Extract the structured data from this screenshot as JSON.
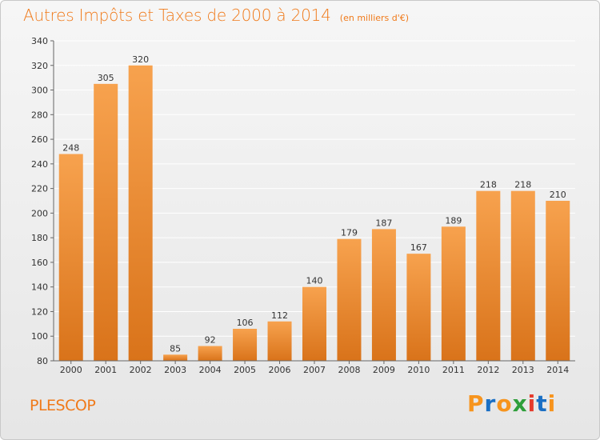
{
  "title": "Autres Impôts et Taxes de 2000 à 2014",
  "unit_label": "(en milliers d'€)",
  "city": "PLESCOP",
  "logo": {
    "text": "Proxiti",
    "letters": [
      "P",
      "r",
      "o",
      "x",
      "i",
      "t",
      "i"
    ],
    "colors": [
      "#f7941d",
      "#1a6fc4",
      "#f7941d",
      "#2e9e3a",
      "#e53b2c",
      "#1a6fc4",
      "#f7941d"
    ]
  },
  "chart_data": {
    "type": "bar",
    "categories": [
      "2000",
      "2001",
      "2002",
      "2003",
      "2004",
      "2005",
      "2006",
      "2007",
      "2008",
      "2009",
      "2010",
      "2011",
      "2012",
      "2013",
      "2014"
    ],
    "values": [
      248,
      305,
      320,
      85,
      92,
      106,
      112,
      140,
      179,
      187,
      167,
      189,
      218,
      218,
      210
    ],
    "ylim": [
      80,
      340
    ],
    "yticks": [
      80,
      100,
      120,
      140,
      160,
      180,
      200,
      220,
      240,
      260,
      280,
      300,
      320,
      340
    ],
    "grid": true,
    "bar_color_top": "#f7a24e",
    "bar_color_bottom": "#d9731a",
    "xlabel": "",
    "ylabel": ""
  }
}
